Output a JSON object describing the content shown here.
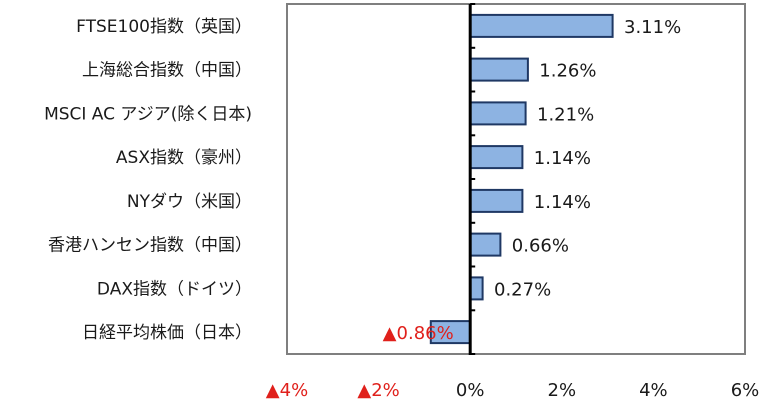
{
  "chart_data": {
    "type": "bar",
    "orientation": "horizontal",
    "categories": [
      "FTSE100指数（英国）",
      "上海総合指数（中国）",
      "MSCI AC アジア(除く日本)",
      "ASX指数（豪州）",
      "NYダウ（米国）",
      "香港ハンセン指数（中国）",
      "DAX指数（ドイツ）",
      "日経平均株価（日本）"
    ],
    "values": [
      3.11,
      1.26,
      1.21,
      1.14,
      1.14,
      0.66,
      0.27,
      -0.86
    ],
    "value_labels": [
      "3.11%",
      "1.26%",
      "1.21%",
      "1.14%",
      "1.14%",
      "0.66%",
      "0.27%",
      "▲0.86%"
    ],
    "xlim": [
      -4,
      6
    ],
    "x_ticks": [
      -4,
      -2,
      0,
      2,
      4,
      6
    ],
    "x_tick_labels": [
      "▲4%",
      "▲2%",
      "0%",
      "2%",
      "4%",
      "6%"
    ],
    "title": "",
    "xlabel": "",
    "ylabel": "",
    "grid": false,
    "colors": {
      "bar_fill": "#8db3e2",
      "bar_stroke": "#1f3864",
      "negative_label": "#e0201b",
      "axis": "#000000",
      "frame": "#7f7f7f"
    }
  }
}
